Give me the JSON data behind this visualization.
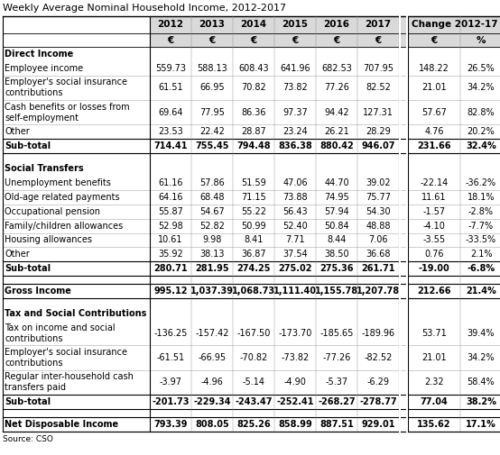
{
  "title": "Weekly Average Nominal Household Income, 2012-2017",
  "source": "Source: CSO",
  "years": [
    "2012",
    "2013",
    "2014",
    "2015",
    "2016",
    "2017"
  ],
  "rows": [
    {
      "label": "Direct Income",
      "type": "section_header",
      "values": [],
      "bold": true,
      "lines": 1
    },
    {
      "label": "Employee income",
      "type": "data",
      "values": [
        "559.73",
        "588.13",
        "608.43",
        "641.96",
        "682.53",
        "707.95",
        "148.22",
        "26.5%"
      ],
      "bold": false,
      "lines": 1
    },
    {
      "label": "Employer's social insurance\ncontributions",
      "type": "data",
      "values": [
        "61.51",
        "66.95",
        "70.82",
        "73.82",
        "77.26",
        "82.52",
        "21.01",
        "34.2%"
      ],
      "bold": false,
      "lines": 2
    },
    {
      "label": "Cash benefits or losses from\nself-employment",
      "type": "data",
      "values": [
        "69.64",
        "77.95",
        "86.36",
        "97.37",
        "94.42",
        "127.31",
        "57.67",
        "82.8%"
      ],
      "bold": false,
      "lines": 2
    },
    {
      "label": "Other",
      "type": "data",
      "values": [
        "23.53",
        "22.42",
        "28.87",
        "23.24",
        "26.21",
        "28.29",
        "4.76",
        "20.2%"
      ],
      "bold": false,
      "lines": 1
    },
    {
      "label": "Sub-total",
      "type": "subtotal",
      "values": [
        "714.41",
        "755.45",
        "794.48",
        "836.38",
        "880.42",
        "946.07",
        "231.66",
        "32.4%"
      ],
      "bold": true,
      "lines": 1
    },
    {
      "label": "",
      "type": "spacer",
      "values": [],
      "bold": false,
      "lines": 1
    },
    {
      "label": "Social Transfers",
      "type": "section_header",
      "values": [],
      "bold": true,
      "lines": 1
    },
    {
      "label": "Unemployment benefits",
      "type": "data",
      "values": [
        "61.16",
        "57.86",
        "51.59",
        "47.06",
        "44.70",
        "39.02",
        "-22.14",
        "-36.2%"
      ],
      "bold": false,
      "lines": 1
    },
    {
      "label": "Old-age related payments",
      "type": "data",
      "values": [
        "64.16",
        "68.48",
        "71.15",
        "73.88",
        "74.95",
        "75.77",
        "11.61",
        "18.1%"
      ],
      "bold": false,
      "lines": 1
    },
    {
      "label": "Occupational pension",
      "type": "data",
      "values": [
        "55.87",
        "54.67",
        "55.22",
        "56.43",
        "57.94",
        "54.30",
        "-1.57",
        "-2.8%"
      ],
      "bold": false,
      "lines": 1
    },
    {
      "label": "Family/children allowances",
      "type": "data",
      "values": [
        "52.98",
        "52.82",
        "50.99",
        "52.40",
        "50.84",
        "48.88",
        "-4.10",
        "-7.7%"
      ],
      "bold": false,
      "lines": 1
    },
    {
      "label": "Housing allowances",
      "type": "data",
      "values": [
        "10.61",
        "9.98",
        "8.41",
        "7.71",
        "8.44",
        "7.06",
        "-3.55",
        "-33.5%"
      ],
      "bold": false,
      "lines": 1
    },
    {
      "label": "Other",
      "type": "data",
      "values": [
        "35.92",
        "38.13",
        "36.87",
        "37.54",
        "38.50",
        "36.68",
        "0.76",
        "2.1%"
      ],
      "bold": false,
      "lines": 1
    },
    {
      "label": "Sub-total",
      "type": "subtotal",
      "values": [
        "280.71",
        "281.95",
        "274.25",
        "275.02",
        "275.36",
        "261.71",
        "-19.00",
        "-6.8%"
      ],
      "bold": true,
      "lines": 1
    },
    {
      "label": "",
      "type": "spacer",
      "values": [],
      "bold": false,
      "lines": 1
    },
    {
      "label": "Gross Income",
      "type": "gross",
      "values": [
        "995.12",
        "1,037.39",
        "1,068.73",
        "1,111.40",
        "1,155.78",
        "1,207.78",
        "212.66",
        "21.4%"
      ],
      "bold": true,
      "lines": 1
    },
    {
      "label": "",
      "type": "spacer",
      "values": [],
      "bold": false,
      "lines": 1
    },
    {
      "label": "Tax and Social Contributions",
      "type": "section_header",
      "values": [],
      "bold": true,
      "lines": 1
    },
    {
      "label": "Tax on income and social\ncontributions",
      "type": "data",
      "values": [
        "-136.25",
        "-157.42",
        "-167.50",
        "-173.70",
        "-185.65",
        "-189.96",
        "53.71",
        "39.4%"
      ],
      "bold": false,
      "lines": 2
    },
    {
      "label": "Employer's social insurance\ncontributions",
      "type": "data",
      "values": [
        "-61.51",
        "-66.95",
        "-70.82",
        "-73.82",
        "-77.26",
        "-82.52",
        "21.01",
        "34.2%"
      ],
      "bold": false,
      "lines": 2
    },
    {
      "label": "Regular inter-household cash\ntransfers paid",
      "type": "data",
      "values": [
        "-3.97",
        "-4.96",
        "-5.14",
        "-4.90",
        "-5.37",
        "-6.29",
        "2.32",
        "58.4%"
      ],
      "bold": false,
      "lines": 2
    },
    {
      "label": "Sub-total",
      "type": "subtotal",
      "values": [
        "-201.73",
        "-229.34",
        "-243.47",
        "-252.41",
        "-268.27",
        "-278.77",
        "77.04",
        "38.2%"
      ],
      "bold": true,
      "lines": 1
    },
    {
      "label": "",
      "type": "spacer",
      "values": [],
      "bold": false,
      "lines": 1
    },
    {
      "label": "Net Disposable Income",
      "type": "net",
      "values": [
        "793.39",
        "808.05",
        "825.26",
        "858.99",
        "887.51",
        "929.01",
        "135.62",
        "17.1%"
      ],
      "bold": true,
      "lines": 1
    }
  ],
  "font_size": 7.0,
  "title_font_size": 8.0,
  "header_bg": "#d9d9d9",
  "text_color": "#000000",
  "col_sep_color": "#888888"
}
